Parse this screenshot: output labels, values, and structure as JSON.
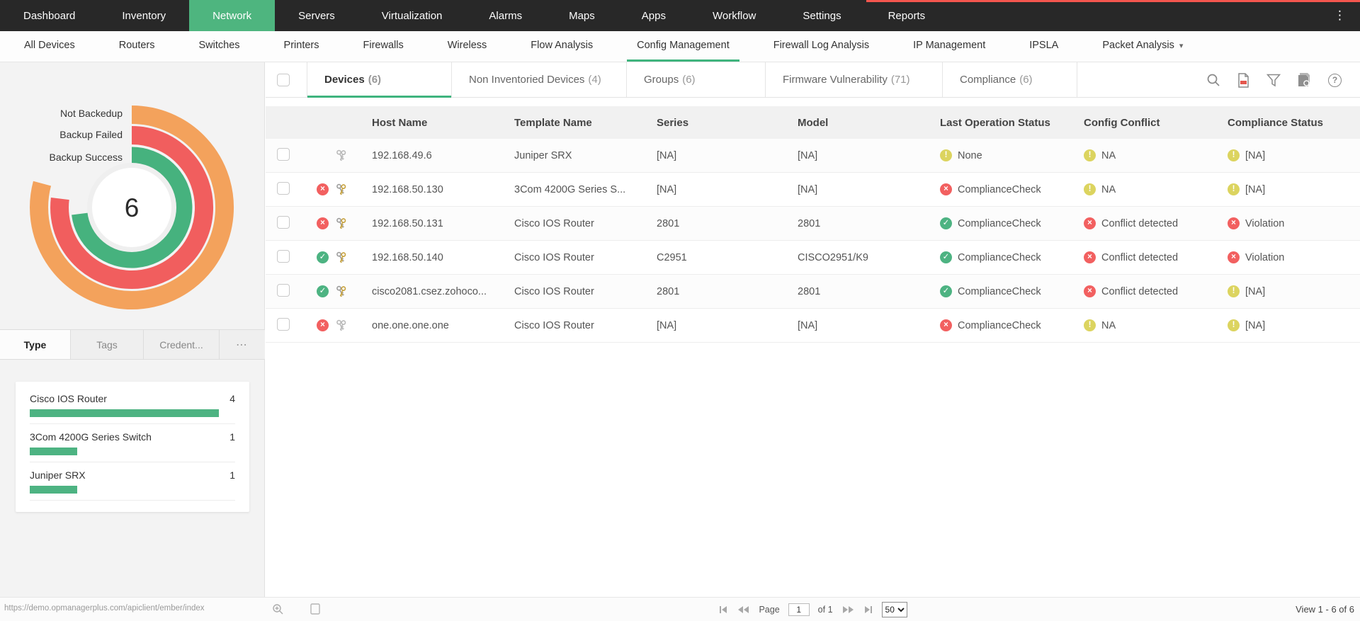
{
  "glyphs": {
    "more_vertical": "⋮",
    "caret_down": "▾",
    "sidebar_more": "⋯",
    "help": "?"
  },
  "topnav": {
    "items": [
      {
        "label": "Dashboard",
        "active": false
      },
      {
        "label": "Inventory",
        "active": false
      },
      {
        "label": "Network",
        "active": true
      },
      {
        "label": "Servers",
        "active": false
      },
      {
        "label": "Virtualization",
        "active": false
      },
      {
        "label": "Alarms",
        "active": false
      },
      {
        "label": "Maps",
        "active": false
      },
      {
        "label": "Apps",
        "active": false
      },
      {
        "label": "Workflow",
        "active": false
      },
      {
        "label": "Settings",
        "active": false
      },
      {
        "label": "Reports",
        "active": false
      }
    ]
  },
  "subnav": {
    "items": [
      {
        "label": "All Devices",
        "active": false
      },
      {
        "label": "Routers",
        "active": false
      },
      {
        "label": "Switches",
        "active": false
      },
      {
        "label": "Printers",
        "active": false
      },
      {
        "label": "Firewalls",
        "active": false
      },
      {
        "label": "Wireless",
        "active": false
      },
      {
        "label": "Flow Analysis",
        "active": false
      },
      {
        "label": "Config Management",
        "active": true
      },
      {
        "label": "Firewall Log Analysis",
        "active": false
      },
      {
        "label": "IP Management",
        "active": false
      },
      {
        "label": "IPSLA",
        "active": false
      },
      {
        "label": "Packet Analysis",
        "active": false,
        "has_caret": true
      }
    ]
  },
  "sidebar": {
    "backup_chart": {
      "type": "radial-bar",
      "center_value": "6",
      "rings": [
        {
          "label": "Not Backedup",
          "color": "#F3A25C",
          "sweep_deg": 285
        },
        {
          "label": "Backup Failed",
          "color": "#F15E5E",
          "sweep_deg": 277
        },
        {
          "label": "Backup Success",
          "color": "#46B27E",
          "sweep_deg": 263
        }
      ]
    },
    "tabs": [
      {
        "label": "Type",
        "active": true
      },
      {
        "label": "Tags",
        "active": false
      },
      {
        "label": "Credent...",
        "active": false
      }
    ],
    "type_chart": {
      "type": "bar",
      "bar_color": "#4DB382",
      "max": 4,
      "items": [
        {
          "label": "Cisco IOS Router",
          "value": 4
        },
        {
          "label": "3Com 4200G Series Switch",
          "value": 1
        },
        {
          "label": "Juniper SRX",
          "value": 1
        }
      ]
    }
  },
  "content": {
    "tabs": [
      {
        "label": "Devices",
        "count": "(6)",
        "active": true
      },
      {
        "label": "Non Inventoried Devices",
        "count": "(4)",
        "active": false
      },
      {
        "label": "Groups",
        "count": "(6)",
        "active": false
      },
      {
        "label": "Firmware Vulnerability",
        "count": "(71)",
        "active": false
      },
      {
        "label": "Compliance",
        "count": "(6)",
        "active": false
      }
    ],
    "status_colors": {
      "success": "#4DB382",
      "error": "#F26060",
      "warn": "#DCD45F"
    },
    "table": {
      "columns": [
        "Host Name",
        "Template Name",
        "Series",
        "Model",
        "Last Operation Status",
        "Config Conflict",
        "Compliance Status"
      ],
      "rows": [
        {
          "row_status": "",
          "key": "gray",
          "host": "192.168.49.6",
          "template": "Juniper SRX",
          "series": "[NA]",
          "model": "[NA]",
          "last_op": {
            "status": "warn",
            "text": "None"
          },
          "config_conflict": {
            "status": "warn",
            "text": "NA"
          },
          "compliance": {
            "status": "warn",
            "text": "[NA]"
          }
        },
        {
          "row_status": "error",
          "key": "gold",
          "host": "192.168.50.130",
          "template": "3Com 4200G Series S...",
          "series": "[NA]",
          "model": "[NA]",
          "last_op": {
            "status": "error",
            "text": "ComplianceCheck"
          },
          "config_conflict": {
            "status": "warn",
            "text": "NA"
          },
          "compliance": {
            "status": "warn",
            "text": "[NA]"
          }
        },
        {
          "row_status": "error",
          "key": "gold",
          "host": "192.168.50.131",
          "template": "Cisco IOS Router",
          "series": "2801",
          "model": "2801",
          "last_op": {
            "status": "success",
            "text": "ComplianceCheck"
          },
          "config_conflict": {
            "status": "error",
            "text": "Conflict detected"
          },
          "compliance": {
            "status": "error",
            "text": "Violation"
          }
        },
        {
          "row_status": "success",
          "key": "gold",
          "host": "192.168.50.140",
          "template": "Cisco IOS Router",
          "series": "C2951",
          "model": "CISCO2951/K9",
          "last_op": {
            "status": "success",
            "text": "ComplianceCheck"
          },
          "config_conflict": {
            "status": "error",
            "text": "Conflict detected"
          },
          "compliance": {
            "status": "error",
            "text": "Violation"
          }
        },
        {
          "row_status": "success",
          "key": "gold",
          "host": "cisco2081.csez.zohoco...",
          "template": "Cisco IOS Router",
          "series": "2801",
          "model": "2801",
          "last_op": {
            "status": "success",
            "text": "ComplianceCheck"
          },
          "config_conflict": {
            "status": "error",
            "text": "Conflict detected"
          },
          "compliance": {
            "status": "warn",
            "text": "[NA]"
          }
        },
        {
          "row_status": "error",
          "key": "gray",
          "host": "one.one.one.one",
          "template": "Cisco IOS Router",
          "series": "[NA]",
          "model": "[NA]",
          "last_op": {
            "status": "error",
            "text": "ComplianceCheck"
          },
          "config_conflict": {
            "status": "warn",
            "text": "NA"
          },
          "compliance": {
            "status": "warn",
            "text": "[NA]"
          }
        }
      ]
    },
    "pagination": {
      "page_label": "Page",
      "page": "1",
      "of_label": "of 1",
      "page_size": "50",
      "view_label": "View 1 - 6 of 6"
    }
  },
  "statusbar": {
    "url": "https://demo.opmanagerplus.com/apiclient/ember/index"
  }
}
